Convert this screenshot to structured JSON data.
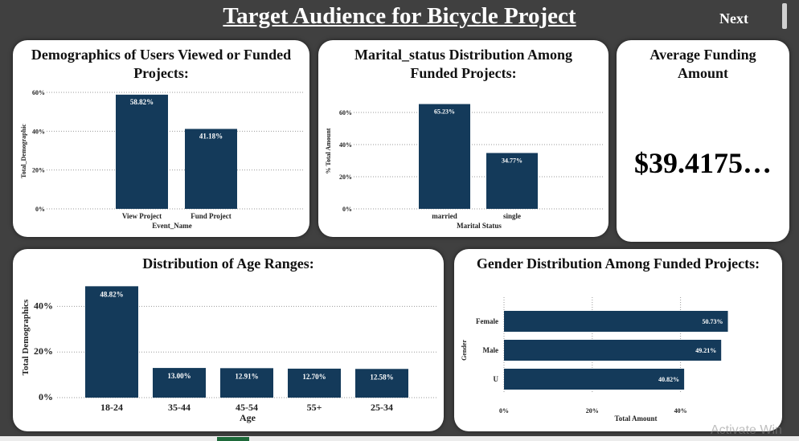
{
  "header": {
    "title": "Target Audience for Bicycle Project",
    "next_label": "Next"
  },
  "colors": {
    "bar": "#143a5a",
    "background": "#404040",
    "card": "#ffffff"
  },
  "kpi": {
    "title": "Average Funding Amount",
    "value": "$39.4175…"
  },
  "watermark": "Activate Win",
  "chart_data": [
    {
      "type": "bar",
      "title": "Demographics of Users Viewed or Funded Projects:",
      "xlabel": "Event_Name",
      "ylabel": "Total_Demographic",
      "categories": [
        "View Project",
        "Fund Project"
      ],
      "values": [
        58.82,
        41.18
      ],
      "data_labels": [
        "58.82%",
        "41.18%"
      ],
      "ylim": [
        0,
        60
      ],
      "yticks": [
        0,
        20,
        40,
        60
      ],
      "ytick_labels": [
        "0%",
        "20%",
        "40%",
        "60%"
      ],
      "grid": true
    },
    {
      "type": "bar",
      "title": "Marital_status Distribution Among Funded Projects:",
      "xlabel": "Marital Status",
      "ylabel": "% Total Amount",
      "categories": [
        "married",
        "single"
      ],
      "values": [
        65.23,
        34.77
      ],
      "data_labels": [
        "65.23%",
        "34.77%"
      ],
      "ylim": [
        0,
        70
      ],
      "yticks": [
        0,
        20,
        40,
        60
      ],
      "ytick_labels": [
        "0%",
        "20%",
        "40%",
        "60%"
      ],
      "grid": true
    },
    {
      "type": "bar",
      "title": "Distribution of Age Ranges:",
      "xlabel": "Age",
      "ylabel": "Total Demographics",
      "categories": [
        "18-24",
        "35-44",
        "45-54",
        "55+",
        "25-34"
      ],
      "values": [
        48.82,
        13.0,
        12.91,
        12.7,
        12.58
      ],
      "data_labels": [
        "48.82%",
        "13.00%",
        "12.91%",
        "12.70%",
        "12.58%"
      ],
      "ylim": [
        0,
        50
      ],
      "yticks": [
        0,
        20,
        40
      ],
      "ytick_labels": [
        "0%",
        "20%",
        "40%"
      ],
      "grid": true
    },
    {
      "type": "bar",
      "orientation": "horizontal",
      "title": "Gender Distribution Among Funded Projects:",
      "xlabel": "Total Amount",
      "ylabel": "Gender",
      "categories": [
        "Female",
        "Male",
        "U"
      ],
      "values": [
        50.73,
        49.21,
        40.82
      ],
      "data_labels": [
        "50.73%",
        "49.21%",
        "40.82%"
      ],
      "xlim": [
        0,
        53
      ],
      "xticks": [
        0,
        20,
        40
      ],
      "xtick_labels": [
        "0%",
        "20%",
        "40%"
      ],
      "grid": true
    }
  ]
}
